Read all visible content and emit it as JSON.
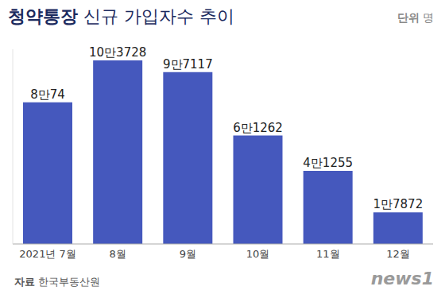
{
  "chart_data": {
    "type": "bar",
    "title": "청약통장 신규 가입자수 추이",
    "annotations": [
      "단위 명",
      "자료 한국부동산원",
      "news1"
    ],
    "categories": [
      "2021년 7월",
      "8월",
      "9월",
      "10월",
      "11월",
      "12월"
    ],
    "values": [
      80074,
      103728,
      97117,
      61262,
      41255,
      17872
    ],
    "value_labels": [
      "8만74",
      "10만3728",
      "9만7117",
      "6만1262",
      "4만1255",
      "1만7872"
    ],
    "color": "#4558bd",
    "ylim": [
      0,
      110000
    ],
    "yticks": [
      0,
      110000
    ],
    "grid": false,
    "data_labels": true,
    "tick_labels": "x"
  }
}
